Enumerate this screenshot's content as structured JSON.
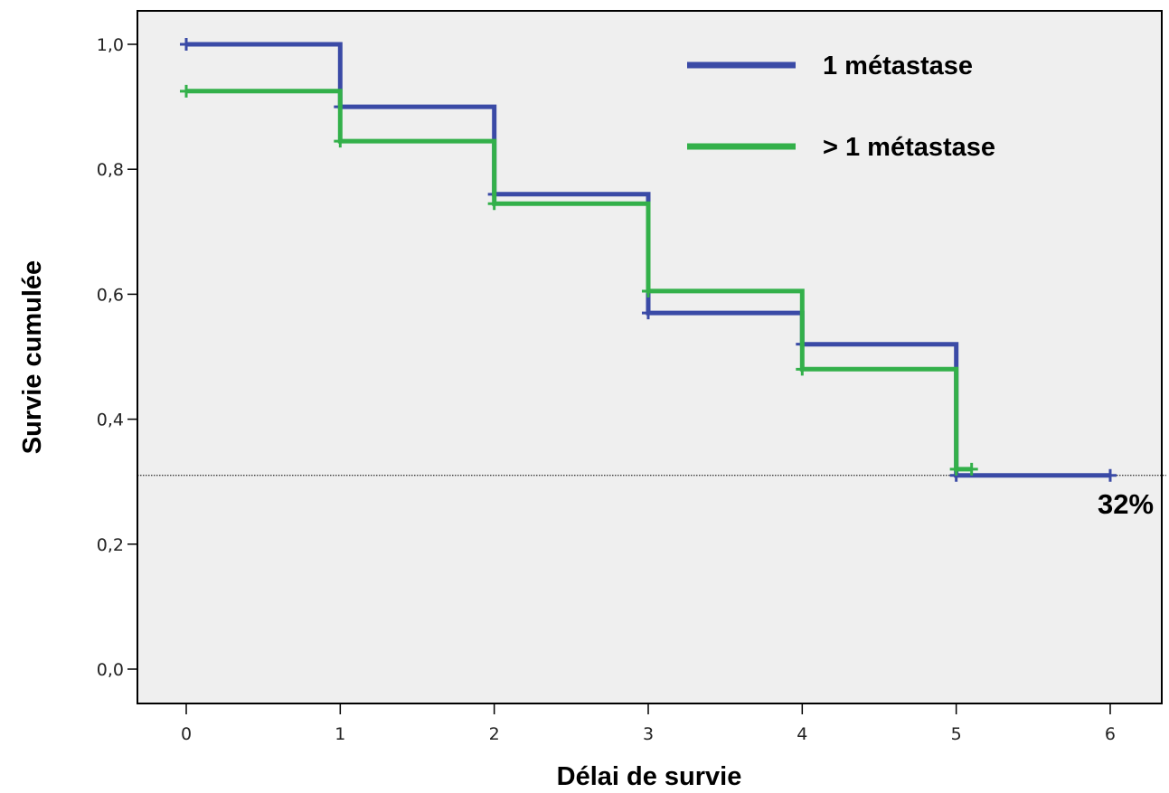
{
  "chart_data": {
    "type": "line",
    "step": true,
    "xlabel": "Délai de survie",
    "ylabel": "Survie cumulée",
    "xlim": [
      0,
      6
    ],
    "ylim": [
      0,
      1
    ],
    "x_ticks": [
      "0",
      "1",
      "2",
      "3",
      "4",
      "5",
      "6"
    ],
    "y_ticks": [
      "0,0",
      "0,2",
      "0,4",
      "0,6",
      "0,8",
      "1,0"
    ],
    "grid": false,
    "legend_position": "top-right",
    "series": [
      {
        "name": "1 métastase",
        "color": "#3a4aa6",
        "x": [
          0,
          1,
          2,
          3,
          4,
          5,
          6
        ],
        "y": [
          1.0,
          0.9,
          0.76,
          0.57,
          0.52,
          0.31,
          0.31
        ]
      },
      {
        "name": "> 1 métastase",
        "color": "#33b04a",
        "x": [
          0,
          1,
          2,
          3,
          4,
          5,
          5.1
        ],
        "y": [
          0.925,
          0.845,
          0.745,
          0.605,
          0.48,
          0.32,
          0.32
        ]
      }
    ],
    "reference_line": {
      "y": 0.31,
      "label": "32%"
    },
    "plot_background": "#efefef"
  }
}
